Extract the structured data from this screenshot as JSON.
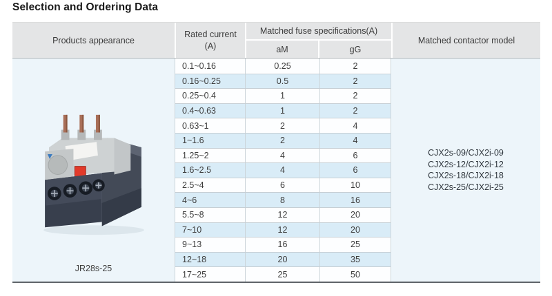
{
  "page_title": "Selection and Ordering Data",
  "table": {
    "headers": {
      "products_appearance": "Products appearance",
      "rated_current_line1": "Rated current",
      "rated_current_line2": "(A)",
      "fuse_spec": "Matched fuse specifications(A)",
      "fuse_am": "aM",
      "fuse_gg": "gG",
      "contactor": "Matched contactor model"
    },
    "product_label": "JR28s-25",
    "contactor_models": [
      "CJX2s-09/CJX2i-09",
      "CJX2s-12/CJX2i-12",
      "CJX2s-18/CJX2i-18",
      "CJX2s-25/CJX2i-25"
    ],
    "rows": [
      {
        "rated_current": "0.1~0.16",
        "am": "0.25",
        "gg": "2"
      },
      {
        "rated_current": "0.16~0.25",
        "am": "0.5",
        "gg": "2"
      },
      {
        "rated_current": "0.25~0.4",
        "am": "1",
        "gg": "2"
      },
      {
        "rated_current": "0.4~0.63",
        "am": "1",
        "gg": "2"
      },
      {
        "rated_current": "0.63~1",
        "am": "2",
        "gg": "4"
      },
      {
        "rated_current": "1~1.6",
        "am": "2",
        "gg": "4"
      },
      {
        "rated_current": "1.25~2",
        "am": "4",
        "gg": "6"
      },
      {
        "rated_current": "1.6~2.5",
        "am": "4",
        "gg": "6"
      },
      {
        "rated_current": "2.5~4",
        "am": "6",
        "gg": "10"
      },
      {
        "rated_current": "4~6",
        "am": "8",
        "gg": "16"
      },
      {
        "rated_current": "5.5~8",
        "am": "12",
        "gg": "20"
      },
      {
        "rated_current": "7~10",
        "am": "12",
        "gg": "20"
      },
      {
        "rated_current": "9~13",
        "am": "16",
        "gg": "25"
      },
      {
        "rated_current": "12~18",
        "am": "20",
        "gg": "35"
      },
      {
        "rated_current": "17~25",
        "am": "25",
        "gg": "50"
      }
    ],
    "colors": {
      "header_bg": "#e4e5e6",
      "row_alt_bg": "#d9ecf7",
      "merged_col_bg": "#edf5fa"
    }
  }
}
